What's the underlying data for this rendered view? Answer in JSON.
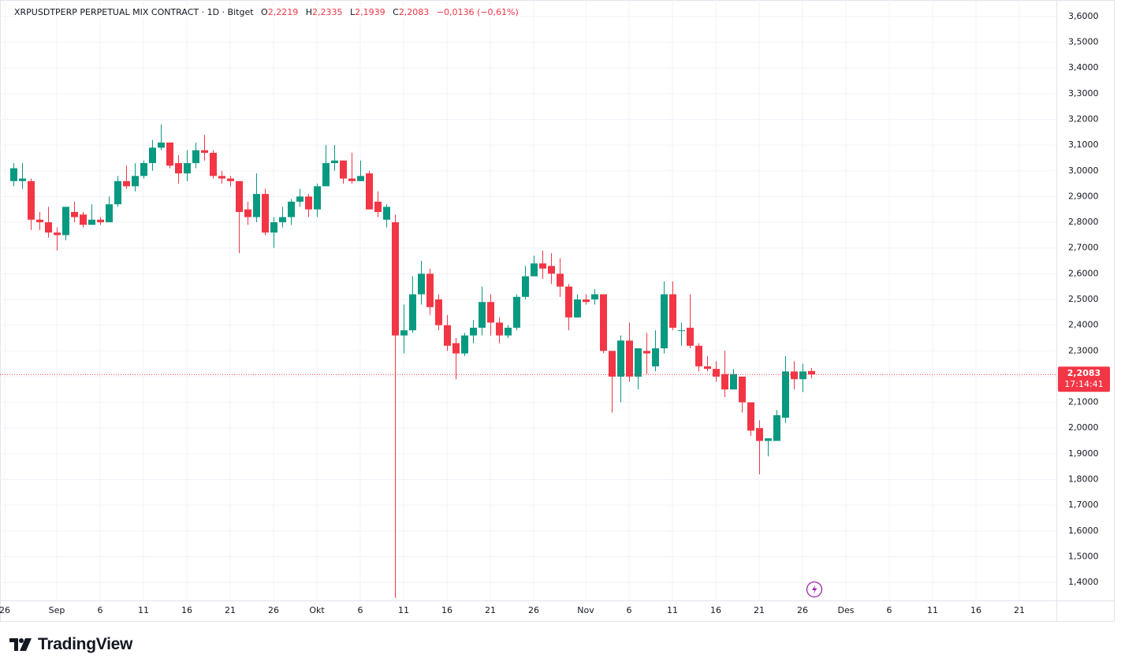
{
  "header": {
    "symbol": "XRPUSDTPERP PERPETUAL MIX CONTRACT · 1D · Bitget",
    "ohlc": [
      {
        "key": "O",
        "value": "2,2219"
      },
      {
        "key": "H",
        "value": "2,2335"
      },
      {
        "key": "L",
        "value": "2,1939"
      },
      {
        "key": "C",
        "value": "2,2083"
      }
    ],
    "change": "−0,0136 (−0,61%)"
  },
  "brand": "TradingView",
  "chart_data": {
    "type": "candlestick",
    "up_color": "#089981",
    "down_color": "#f23645",
    "grid": true,
    "x": [
      "08-27",
      "08-28",
      "08-29",
      "08-30",
      "08-31",
      "09-01",
      "09-02",
      "09-03",
      "09-04",
      "09-05",
      "09-06",
      "09-07",
      "09-08",
      "09-09",
      "09-10",
      "09-11",
      "09-12",
      "09-13",
      "09-14",
      "09-15",
      "09-16",
      "09-17",
      "09-18",
      "09-19",
      "09-20",
      "09-21",
      "09-22",
      "09-23",
      "09-24",
      "09-25",
      "09-26",
      "09-27",
      "09-28",
      "09-29",
      "09-30",
      "10-01",
      "10-02",
      "10-03",
      "10-04",
      "10-05",
      "10-06",
      "10-07",
      "10-08",
      "10-09",
      "10-10",
      "10-11",
      "10-12",
      "10-13",
      "10-14",
      "10-15",
      "10-16",
      "10-17",
      "10-18",
      "10-19",
      "10-20",
      "10-21",
      "10-22",
      "10-23",
      "10-24",
      "10-25",
      "10-26",
      "10-27",
      "10-28",
      "10-29",
      "10-30",
      "10-31",
      "11-01",
      "11-02",
      "11-03",
      "11-04",
      "11-05",
      "11-06",
      "11-07",
      "11-08",
      "11-09",
      "11-10",
      "11-11",
      "11-12",
      "11-13",
      "11-14",
      "11-15",
      "11-16",
      "11-17",
      "11-18",
      "11-19",
      "11-20",
      "11-21",
      "11-22",
      "11-23",
      "11-24",
      "11-25",
      "11-26",
      "11-27"
    ],
    "open": [
      2.96,
      2.96,
      2.96,
      2.81,
      2.8,
      2.76,
      2.75,
      2.84,
      2.83,
      2.79,
      2.81,
      2.8,
      2.87,
      2.96,
      2.94,
      2.98,
      3.03,
      3.09,
      3.11,
      3.03,
      2.99,
      3.03,
      3.08,
      3.07,
      2.98,
      2.97,
      2.96,
      2.85,
      2.82,
      2.91,
      2.76,
      2.8,
      2.82,
      2.88,
      2.9,
      2.85,
      2.94,
      3.03,
      3.04,
      2.97,
      2.96,
      2.99,
      2.88,
      2.81,
      2.8,
      2.36,
      2.38,
      2.52,
      2.6,
      2.5,
      2.4,
      2.33,
      2.29,
      2.36,
      2.39,
      2.49,
      2.41,
      2.36,
      2.39,
      2.51,
      2.59,
      2.64,
      2.63,
      2.6,
      2.55,
      2.43,
      2.5,
      2.5,
      2.52,
      2.3,
      2.2,
      2.34,
      2.2,
      2.3,
      2.24,
      2.31,
      2.52,
      2.38,
      2.39,
      2.32,
      2.24,
      2.23,
      2.21,
      2.15,
      2.2,
      2.1,
      2.0,
      1.95,
      1.95,
      2.04,
      2.22,
      2.19,
      2.2219
    ],
    "high": [
      3.03,
      3.03,
      2.97,
      2.84,
      2.86,
      2.78,
      2.86,
      2.88,
      2.84,
      2.87,
      2.82,
      2.9,
      2.98,
      3.02,
      3.03,
      3.04,
      3.12,
      3.18,
      3.11,
      3.06,
      3.08,
      3.11,
      3.14,
      3.08,
      3.0,
      2.98,
      2.96,
      2.88,
      2.99,
      2.93,
      2.82,
      2.86,
      2.89,
      2.93,
      2.91,
      2.95,
      3.1,
      3.1,
      3.04,
      3.07,
      3.04,
      3.0,
      2.92,
      2.87,
      2.83,
      2.48,
      2.59,
      2.65,
      2.62,
      2.52,
      2.44,
      2.35,
      2.37,
      2.42,
      2.55,
      2.52,
      2.43,
      2.4,
      2.52,
      2.63,
      2.67,
      2.69,
      2.68,
      2.66,
      2.56,
      2.52,
      2.52,
      2.54,
      2.52,
      2.3,
      2.36,
      2.41,
      2.31,
      2.37,
      2.38,
      2.57,
      2.57,
      2.41,
      2.52,
      2.33,
      2.28,
      2.26,
      2.3,
      2.23,
      2.2,
      2.1,
      2.03,
      1.96,
      2.07,
      2.28,
      2.26,
      2.25,
      2.2335
    ],
    "low": [
      2.94,
      2.93,
      2.77,
      2.77,
      2.74,
      2.69,
      2.73,
      2.8,
      2.78,
      2.79,
      2.79,
      2.8,
      2.86,
      2.93,
      2.92,
      2.97,
      3.0,
      3.08,
      3.01,
      2.95,
      2.96,
      3.01,
      3.04,
      2.97,
      2.95,
      2.94,
      2.68,
      2.79,
      2.8,
      2.75,
      2.7,
      2.78,
      2.79,
      2.86,
      2.82,
      2.82,
      2.94,
      3.0,
      2.95,
      2.95,
      2.96,
      2.85,
      2.82,
      2.78,
      1.34,
      2.29,
      2.37,
      2.48,
      2.44,
      2.38,
      2.3,
      2.19,
      2.28,
      2.33,
      2.36,
      2.36,
      2.33,
      2.35,
      2.38,
      2.5,
      2.59,
      2.58,
      2.56,
      2.51,
      2.38,
      2.43,
      2.48,
      2.48,
      2.29,
      2.06,
      2.1,
      2.18,
      2.15,
      2.21,
      2.22,
      2.29,
      2.38,
      2.32,
      2.31,
      2.22,
      2.22,
      2.18,
      2.12,
      2.15,
      2.06,
      1.97,
      1.82,
      1.89,
      1.95,
      2.02,
      2.15,
      2.14,
      2.1939
    ],
    "close": [
      3.01,
      2.97,
      2.81,
      2.8,
      2.76,
      2.75,
      2.86,
      2.82,
      2.79,
      2.81,
      2.8,
      2.87,
      2.96,
      2.94,
      2.98,
      3.03,
      3.09,
      3.11,
      3.02,
      2.99,
      3.03,
      3.08,
      3.07,
      2.98,
      2.97,
      2.96,
      2.84,
      2.82,
      2.91,
      2.76,
      2.8,
      2.82,
      2.88,
      2.9,
      2.85,
      2.94,
      3.03,
      3.04,
      2.97,
      2.96,
      2.98,
      2.85,
      2.84,
      2.86,
      2.36,
      2.38,
      2.52,
      2.6,
      2.47,
      2.4,
      2.32,
      2.29,
      2.36,
      2.39,
      2.49,
      2.41,
      2.36,
      2.39,
      2.51,
      2.59,
      2.64,
      2.62,
      2.6,
      2.55,
      2.43,
      2.5,
      2.49,
      2.52,
      2.3,
      2.2,
      2.34,
      2.2,
      2.31,
      2.29,
      2.31,
      2.52,
      2.39,
      2.38,
      2.32,
      2.24,
      2.23,
      2.2,
      2.15,
      2.21,
      2.1,
      1.99,
      1.95,
      1.96,
      2.05,
      2.22,
      2.19,
      2.22,
      2.2083
    ],
    "xlim": [
      "08-25",
      "12-26"
    ],
    "xticks": [
      {
        "value": "08-26",
        "label": "26"
      },
      {
        "value": "09-01",
        "label": "Sep"
      },
      {
        "value": "09-06",
        "label": "6"
      },
      {
        "value": "09-11",
        "label": "11"
      },
      {
        "value": "09-16",
        "label": "16"
      },
      {
        "value": "09-21",
        "label": "21"
      },
      {
        "value": "09-26",
        "label": "26"
      },
      {
        "value": "10-01",
        "label": "Okt"
      },
      {
        "value": "10-06",
        "label": "6"
      },
      {
        "value": "10-11",
        "label": "11"
      },
      {
        "value": "10-16",
        "label": "16"
      },
      {
        "value": "10-21",
        "label": "21"
      },
      {
        "value": "10-26",
        "label": "26"
      },
      {
        "value": "11-01",
        "label": "Nov"
      },
      {
        "value": "11-06",
        "label": "6"
      },
      {
        "value": "11-11",
        "label": "11"
      },
      {
        "value": "11-16",
        "label": "16"
      },
      {
        "value": "11-21",
        "label": "21"
      },
      {
        "value": "11-26",
        "label": "26"
      },
      {
        "value": "12-01",
        "label": "Des"
      },
      {
        "value": "12-06",
        "label": "6"
      },
      {
        "value": "12-11",
        "label": "11"
      },
      {
        "value": "12-16",
        "label": "16"
      },
      {
        "value": "12-21",
        "label": "21"
      }
    ],
    "ylim": [
      1.336,
      3.664
    ],
    "yticks": [
      {
        "value": 1.4,
        "label": "1,4000"
      },
      {
        "value": 1.5,
        "label": "1,5000"
      },
      {
        "value": 1.6,
        "label": "1,6000"
      },
      {
        "value": 1.7,
        "label": "1,7000"
      },
      {
        "value": 1.8,
        "label": "1,8000"
      },
      {
        "value": 1.9,
        "label": "1,9000"
      },
      {
        "value": 2.0,
        "label": "2,0000"
      },
      {
        "value": 2.1,
        "label": "2,1000"
      },
      {
        "value": 2.2,
        "label": "2,2000"
      },
      {
        "value": 2.3,
        "label": "2,3000"
      },
      {
        "value": 2.4,
        "label": "2,4000"
      },
      {
        "value": 2.5,
        "label": "2,5000"
      },
      {
        "value": 2.6,
        "label": "2,6000"
      },
      {
        "value": 2.7,
        "label": "2,7000"
      },
      {
        "value": 2.8,
        "label": "2,8000"
      },
      {
        "value": 2.9,
        "label": "2,9000"
      },
      {
        "value": 3.0,
        "label": "3,0000"
      },
      {
        "value": 3.1,
        "label": "3,1000"
      },
      {
        "value": 3.2,
        "label": "3,2000"
      },
      {
        "value": 3.3,
        "label": "3,3000"
      },
      {
        "value": 3.4,
        "label": "3,4000"
      },
      {
        "value": 3.5,
        "label": "3,5000"
      },
      {
        "value": 3.6,
        "label": "3,6000"
      }
    ],
    "last_price": {
      "value": 2.2083,
      "label": "2,2083"
    },
    "countdown": "17:14:41"
  }
}
